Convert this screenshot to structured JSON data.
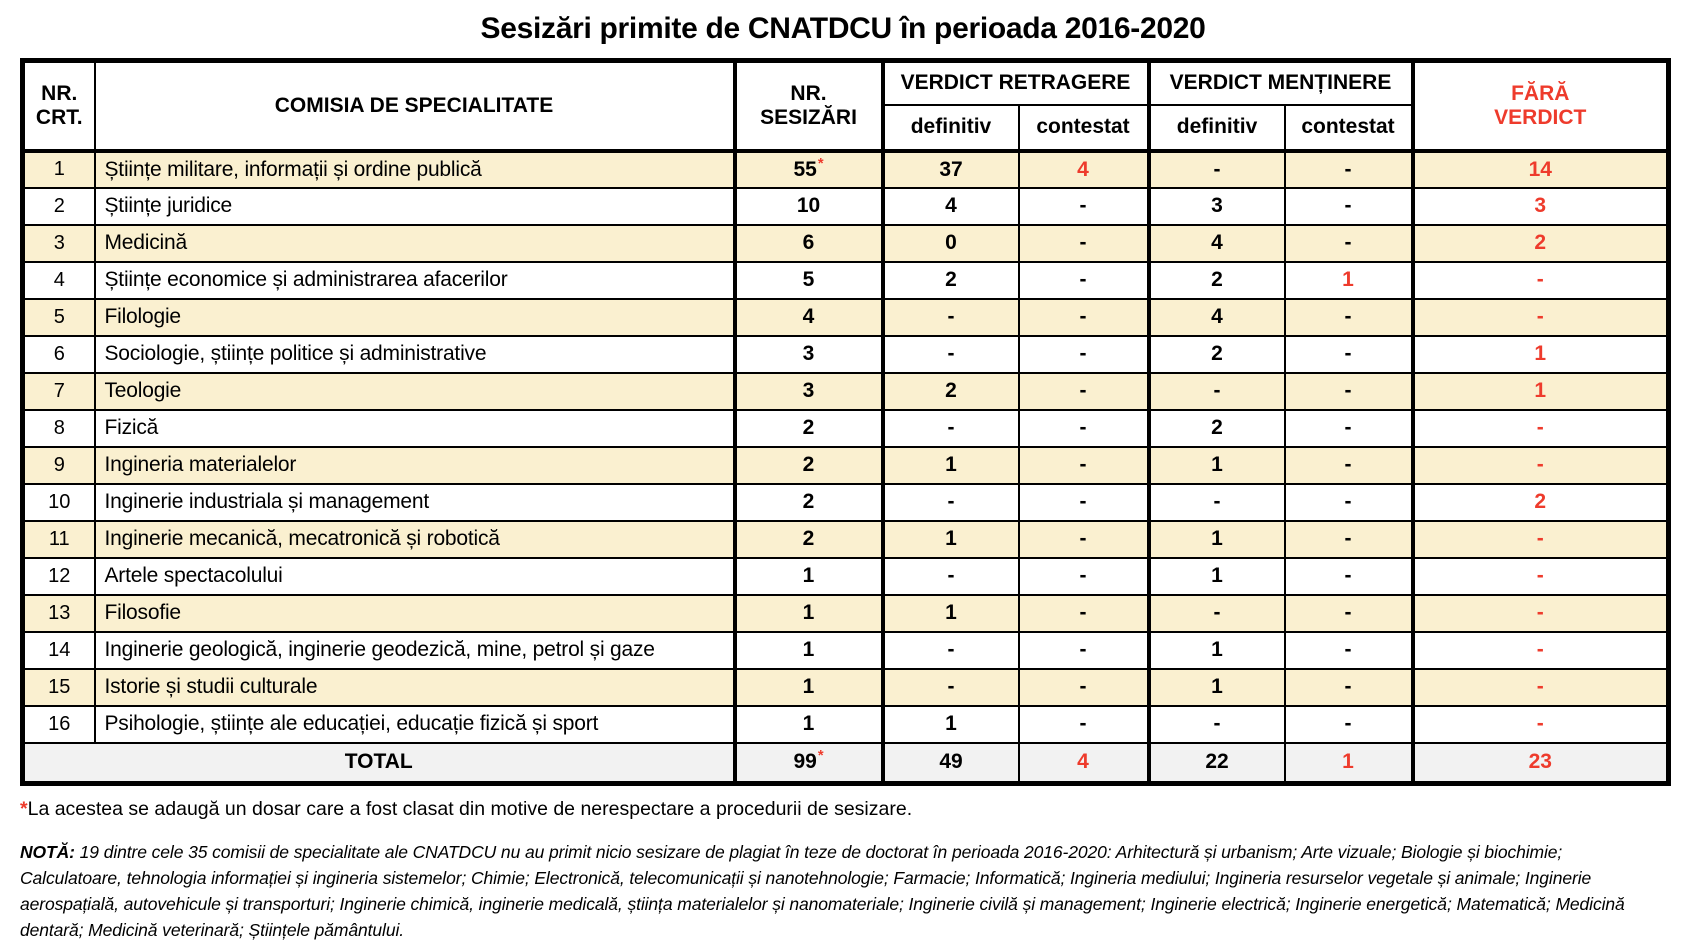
{
  "colors": {
    "accent_red": "#ee3b2c",
    "row_beige": "#faf0d0",
    "total_gray": "#f2f2f2"
  },
  "title": "Sesizări primite de CNATDCU în perioada 2016-2020",
  "table": {
    "headers": {
      "nr_crt": "NR.\nCRT.",
      "comisia": "COMISIA DE SPECIALITATE",
      "nr_sesizari": "NR.\nSESIZĂRI",
      "verdict_retragere": "VERDICT RETRAGERE",
      "verdict_mentinere": "VERDICT MENȚINERE",
      "sub_retragere_definitiv": "definitiv",
      "sub_retragere_contestat": "contestat",
      "sub_mentinere_definitiv": "definitiv",
      "sub_mentinere_contestat": "contestat",
      "fara_verdict": "FĂRĂ\nVERDICT"
    },
    "rows": [
      {
        "nr": "1",
        "comisia": "Științe militare, informații și ordine publică",
        "cells": [
          {
            "t": "55",
            "star": true
          },
          {
            "t": "37"
          },
          {
            "t": "4",
            "red": true
          },
          {
            "t": "-"
          },
          {
            "t": "-"
          },
          {
            "t": "14",
            "red": true
          }
        ]
      },
      {
        "nr": "2",
        "comisia": "Științe juridice",
        "cells": [
          {
            "t": "10"
          },
          {
            "t": "4"
          },
          {
            "t": "-"
          },
          {
            "t": "3"
          },
          {
            "t": "-"
          },
          {
            "t": "3",
            "red": true
          }
        ]
      },
      {
        "nr": "3",
        "comisia": "Medicină",
        "cells": [
          {
            "t": "6"
          },
          {
            "t": "0"
          },
          {
            "t": "-"
          },
          {
            "t": "4"
          },
          {
            "t": "-"
          },
          {
            "t": "2",
            "red": true
          }
        ]
      },
      {
        "nr": "4",
        "comisia": "Științe economice și administrarea afacerilor",
        "cells": [
          {
            "t": "5"
          },
          {
            "t": "2"
          },
          {
            "t": "-"
          },
          {
            "t": "2"
          },
          {
            "t": "1",
            "red": true
          },
          {
            "t": "-",
            "red": true
          }
        ]
      },
      {
        "nr": "5",
        "comisia": "Filologie",
        "cells": [
          {
            "t": "4"
          },
          {
            "t": "-"
          },
          {
            "t": "-"
          },
          {
            "t": "4"
          },
          {
            "t": "-"
          },
          {
            "t": "-",
            "red": true
          }
        ]
      },
      {
        "nr": "6",
        "comisia": "Sociologie, științe politice și administrative",
        "cells": [
          {
            "t": "3"
          },
          {
            "t": "-"
          },
          {
            "t": "-"
          },
          {
            "t": "2"
          },
          {
            "t": "-"
          },
          {
            "t": "1",
            "red": true
          }
        ]
      },
      {
        "nr": "7",
        "comisia": "Teologie",
        "cells": [
          {
            "t": "3"
          },
          {
            "t": "2"
          },
          {
            "t": "-"
          },
          {
            "t": "-"
          },
          {
            "t": "-"
          },
          {
            "t": "1",
            "red": true
          }
        ]
      },
      {
        "nr": "8",
        "comisia": "Fizică",
        "cells": [
          {
            "t": "2"
          },
          {
            "t": "-"
          },
          {
            "t": "-"
          },
          {
            "t": "2"
          },
          {
            "t": "-"
          },
          {
            "t": "-",
            "red": true
          }
        ]
      },
      {
        "nr": "9",
        "comisia": "Ingineria materialelor",
        "cells": [
          {
            "t": "2"
          },
          {
            "t": "1"
          },
          {
            "t": "-"
          },
          {
            "t": "1"
          },
          {
            "t": "-"
          },
          {
            "t": "-",
            "red": true
          }
        ]
      },
      {
        "nr": "10",
        "comisia": "Inginerie industriala și management",
        "cells": [
          {
            "t": "2"
          },
          {
            "t": "-"
          },
          {
            "t": "-"
          },
          {
            "t": "-"
          },
          {
            "t": "-"
          },
          {
            "t": "2",
            "red": true
          }
        ]
      },
      {
        "nr": "11",
        "comisia": "Inginerie mecanică, mecatronică și robotică",
        "cells": [
          {
            "t": "2"
          },
          {
            "t": "1"
          },
          {
            "t": "-"
          },
          {
            "t": "1"
          },
          {
            "t": "-"
          },
          {
            "t": "-",
            "red": true
          }
        ]
      },
      {
        "nr": "12",
        "comisia": "Artele spectacolului",
        "cells": [
          {
            "t": "1"
          },
          {
            "t": "-"
          },
          {
            "t": "-"
          },
          {
            "t": "1"
          },
          {
            "t": "-"
          },
          {
            "t": "-",
            "red": true
          }
        ]
      },
      {
        "nr": "13",
        "comisia": "Filosofie",
        "cells": [
          {
            "t": "1"
          },
          {
            "t": "1"
          },
          {
            "t": "-"
          },
          {
            "t": "-"
          },
          {
            "t": "-"
          },
          {
            "t": "-",
            "red": true
          }
        ]
      },
      {
        "nr": "14",
        "comisia": "Inginerie geologică, inginerie geodezică, mine, petrol și gaze",
        "cells": [
          {
            "t": "1"
          },
          {
            "t": "-"
          },
          {
            "t": "-"
          },
          {
            "t": "1"
          },
          {
            "t": "-"
          },
          {
            "t": "-",
            "red": true
          }
        ]
      },
      {
        "nr": "15",
        "comisia": "Istorie și studii culturale",
        "cells": [
          {
            "t": "1"
          },
          {
            "t": "-"
          },
          {
            "t": "-"
          },
          {
            "t": "1"
          },
          {
            "t": "-"
          },
          {
            "t": "-",
            "red": true
          }
        ]
      },
      {
        "nr": "16",
        "comisia": "Psihologie, științe ale educației, educație fizică și sport",
        "cells": [
          {
            "t": "1"
          },
          {
            "t": "1"
          },
          {
            "t": "-"
          },
          {
            "t": "-"
          },
          {
            "t": "-"
          },
          {
            "t": "-",
            "red": true
          }
        ]
      }
    ],
    "total": {
      "label": "TOTAL",
      "cells": [
        {
          "t": "99",
          "star": true
        },
        {
          "t": "49"
        },
        {
          "t": "4",
          "red": true
        },
        {
          "t": "22"
        },
        {
          "t": "1",
          "red": true
        },
        {
          "t": "23",
          "red": true
        }
      ]
    }
  },
  "footnotes": {
    "asterisk": "*",
    "asterisk_text": "La acestea se adaugă un dosar care a fost clasat din motive de nerespectare a procedurii de sesizare.",
    "note_label": "NOTĂ:",
    "note_text": "19 dintre cele 35 comisii de specialitate ale CNATDCU nu au primit nicio sesizare de plagiat în teze de doctorat în perioada 2016-2020: Arhitectură și urbanism; Arte vizuale; Biologie și biochimie; Calculatoare, tehnologia informației și ingineria sistemelor; Chimie; Electronică, telecomunicații și nanotehnologie; Farmacie; Informatică; Ingineria mediului; Ingineria resurselor vegetale și animale; Inginerie aerospațială, autovehicule și transporturi; Inginerie chimică, inginerie medicală, știința materialelor și nanomateriale; Inginerie civilă și management; Inginerie electrică; Inginerie energetică; Matematică; Medicină dentară; Medicină veterinară; Științele pământului."
  }
}
